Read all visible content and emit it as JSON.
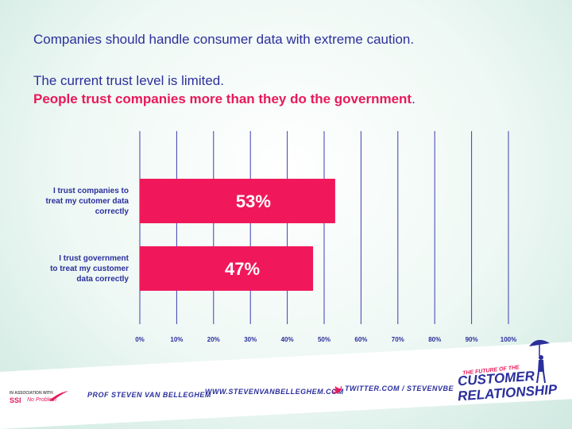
{
  "headlines": {
    "line1": "Companies should handle consumer data with extreme caution.",
    "line2": "The current trust level is limited.",
    "line3": "People trust companies more than they do the government",
    "line3_end": "."
  },
  "chart_data": {
    "type": "bar",
    "orientation": "horizontal",
    "categories": [
      [
        "I trust companies to",
        "treat my cutomer data",
        "correctly"
      ],
      [
        "I trust government",
        "to treat my customer",
        "data correctly"
      ]
    ],
    "values": [
      53,
      47
    ],
    "value_labels": [
      "53%",
      "47%"
    ],
    "xlim": [
      0,
      100
    ],
    "ticks": [
      0,
      10,
      20,
      30,
      40,
      50,
      60,
      70,
      80,
      90,
      100
    ],
    "tick_labels": [
      "0%",
      "10%",
      "20%",
      "30%",
      "40%",
      "50%",
      "60%",
      "70%",
      "80%",
      "90%",
      "100%"
    ],
    "grid": true,
    "bar_color": "#f0185b",
    "grid_color": "#3a3fb0",
    "label_color": "#2b2f9c"
  },
  "footer": {
    "association": "IN ASSOCIATION WITH",
    "ssi": "SSI",
    "no_problem": "No Problem",
    "author": "PROF STEVEN VAN BELLEGHEM",
    "website": "WWW.STEVENVANBELLEGHEM.COM",
    "twitter": "TWITTER.COM / STEVENVBE",
    "brand_small": "THE FUTURE OF THE",
    "brand_line1": "CUSTOMER",
    "brand_line2": "RELATIONSHIP"
  },
  "colors": {
    "accent": "#e8195a",
    "primary": "#2b2f9c"
  },
  "icons": {
    "twitter": "twitter-bird-icon",
    "swoosh": "logo-swoosh-icon",
    "figure": "umbrella-figure-icon"
  }
}
